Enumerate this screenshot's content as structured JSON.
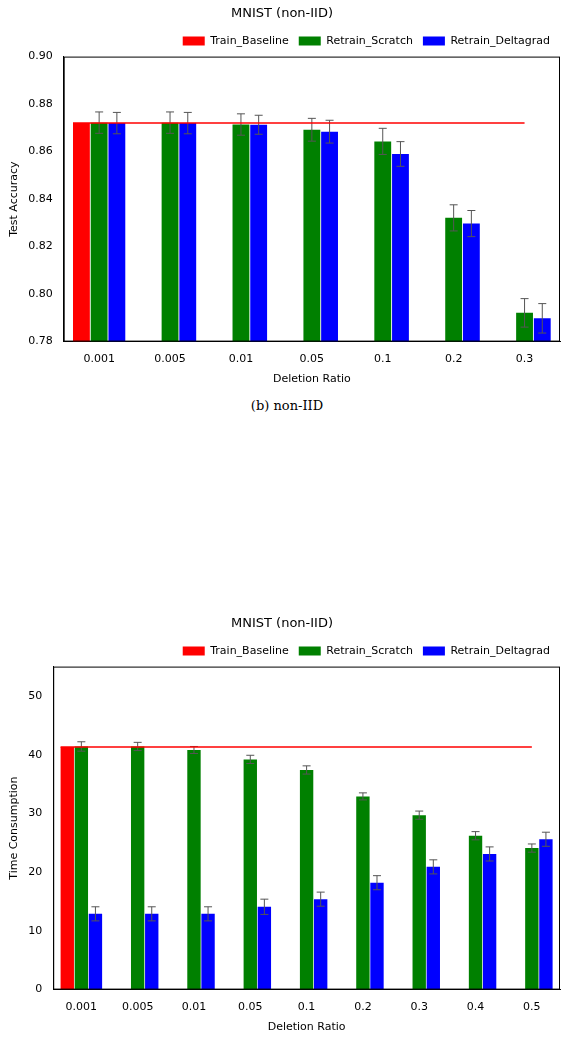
{
  "chart_data": [
    {
      "type": "bar",
      "title": "MNIST (non-IID)",
      "x_label": "Deletion Ratio",
      "y_label": "Test Accuracy",
      "categories": [
        "0.001",
        "0.005",
        "0.01",
        "0.05",
        "0.1",
        "0.2",
        "0.3"
      ],
      "series": [
        {
          "name": "Train_Baseline",
          "color": "#ff0000",
          "values": [
            0.872,
            null,
            null,
            null,
            null,
            null,
            null
          ]
        },
        {
          "name": "Retrain_Scratch",
          "color": "#008000",
          "values": [
            0.8722,
            0.8722,
            0.8714,
            0.8692,
            0.8643,
            0.8321,
            0.7921
          ],
          "errors": [
            0.0045,
            0.0045,
            0.0045,
            0.0048,
            0.0055,
            0.0055,
            0.006
          ]
        },
        {
          "name": "Retrain_Deltagrad",
          "color": "#0000ff",
          "values": [
            0.872,
            0.872,
            0.8713,
            0.8684,
            0.859,
            0.8297,
            0.7898
          ],
          "errors": [
            0.0045,
            0.0045,
            0.004,
            0.0048,
            0.0052,
            0.0055,
            0.0062
          ]
        }
      ],
      "ylim": [
        0.78,
        0.9
      ],
      "yticks": [
        0.78,
        {
          "value": 0.8,
          "label": "0.80"
        },
        0.82,
        0.84,
        0.86,
        0.88,
        {
          "value": 0.9,
          "label": "0.90"
        }
      ],
      "grid": false,
      "legend": "upper right",
      "annotations": [
        "(b) non-IID"
      ]
    },
    {
      "type": "bar",
      "title": "MNIST (non-IID)",
      "x_label": "Deletion Ratio",
      "y_label": "Time Consumption",
      "categories": [
        "0.001",
        "0.005",
        "0.01",
        "0.05",
        "0.1",
        "0.2",
        "0.3",
        "0.4",
        "0.5"
      ],
      "series": [
        {
          "name": "Train_Baseline",
          "color": "#ff0000",
          "values": [
            41.3,
            null,
            null,
            null,
            null,
            null,
            null,
            null,
            null
          ]
        },
        {
          "name": "Retrain_Scratch",
          "color": "#008000",
          "values": [
            41.4,
            41.4,
            40.8,
            39.2,
            37.4,
            32.9,
            29.7,
            26.2,
            24.1
          ],
          "errors": [
            0.8,
            0.7,
            0.6,
            0.7,
            0.7,
            0.6,
            0.7,
            0.7,
            0.7
          ]
        },
        {
          "name": "Retrain_Deltagrad",
          "color": "#0000ff",
          "values": [
            12.9,
            12.9,
            12.9,
            14.1,
            15.4,
            18.2,
            20.9,
            23.1,
            25.6
          ],
          "errors": [
            1.2,
            1.2,
            1.2,
            1.3,
            1.2,
            1.2,
            1.2,
            1.2,
            1.2
          ]
        }
      ],
      "ylim": [
        0,
        55
      ],
      "yticks": [
        0,
        10,
        20,
        30,
        40,
        50
      ],
      "grid": false,
      "legend": "upper right"
    }
  ]
}
